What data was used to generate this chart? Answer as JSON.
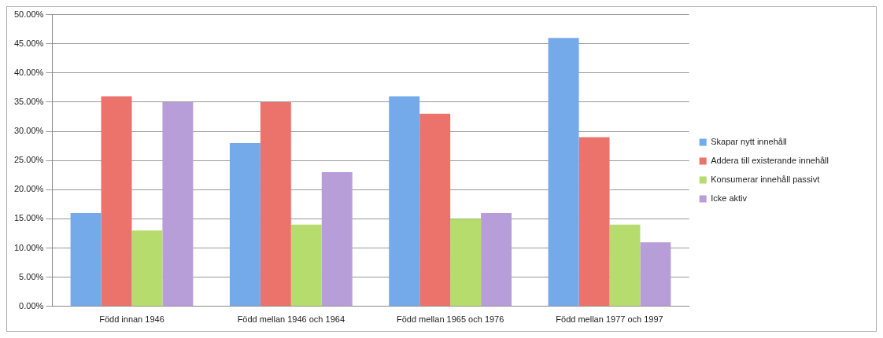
{
  "chart_data": {
    "type": "bar",
    "categories": [
      "Född innan 1946",
      "Född mellan 1946 och 1964",
      "Född mellan 1965 och 1976",
      "Född mellan 1977 och 1997"
    ],
    "series": [
      {
        "name": "Skapar nytt innehåll",
        "color": "#74aaea",
        "values": [
          16,
          28,
          36,
          46
        ]
      },
      {
        "name": "Addera till existerande innehåll",
        "color": "#eb736b",
        "values": [
          36,
          35,
          33,
          29
        ]
      },
      {
        "name": "Konsumerar innehåll passivt",
        "color": "#b6dc6e",
        "values": [
          13,
          14,
          15,
          14
        ]
      },
      {
        "name": "Icke aktiv",
        "color": "#b89ed8",
        "values": [
          35,
          23,
          16,
          11
        ]
      }
    ],
    "ylim": [
      0,
      50
    ],
    "yticks": [
      {
        "value": 0,
        "label": "0.00%"
      },
      {
        "value": 5,
        "label": "5.00%"
      },
      {
        "value": 10,
        "label": "10.00%"
      },
      {
        "value": 15,
        "label": "15.00%"
      },
      {
        "value": 20,
        "label": "20.00%"
      },
      {
        "value": 25,
        "label": "25.00%"
      },
      {
        "value": 30,
        "label": "30.00%"
      },
      {
        "value": 35,
        "label": "35.00%"
      },
      {
        "value": 40,
        "label": "40.00%"
      },
      {
        "value": 45,
        "label": "45.00%"
      },
      {
        "value": 50,
        "label": "50.00%"
      }
    ],
    "grid": "y",
    "legend": "right"
  }
}
